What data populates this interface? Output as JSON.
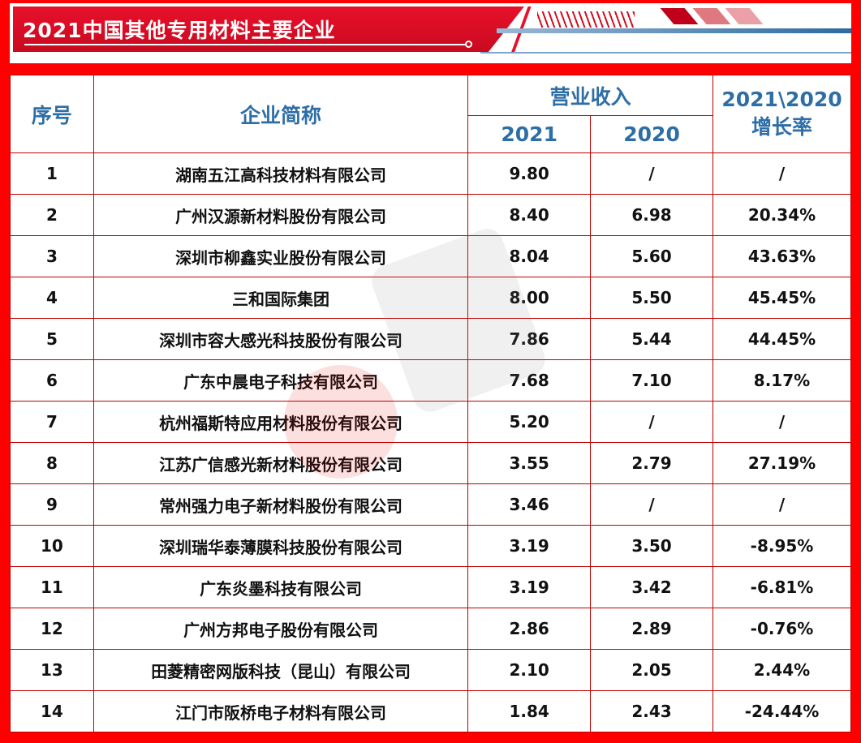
{
  "title": "2021中国其他专用材料主要企业",
  "headers": {
    "index": "序号",
    "name": "企业简称",
    "revenue": "营业收入",
    "y2021": "2021",
    "y2020": "2020",
    "growth_line1": "2021\\2020",
    "growth_line2": "增长率"
  },
  "rows": [
    [
      "1",
      "湖南五江高科技材料有限公司",
      "9.80",
      "/",
      "/"
    ],
    [
      "2",
      "广州汉源新材料股份有限公司",
      "8.40",
      "6.98",
      "20.34%"
    ],
    [
      "3",
      "深圳市柳鑫实业股份有限公司",
      "8.04",
      "5.60",
      "43.63%"
    ],
    [
      "4",
      "三和国际集团",
      "8.00",
      "5.50",
      "45.45%"
    ],
    [
      "5",
      "深圳市容大感光科技股份有限公司",
      "7.86",
      "5.44",
      "44.45%"
    ],
    [
      "6",
      "广东中晨电子科技有限公司",
      "7.68",
      "7.10",
      "8.17%"
    ],
    [
      "7",
      "杭州福斯特应用材料股份有限公司",
      "5.20",
      "/",
      "/"
    ],
    [
      "8",
      "江苏广信感光新材料股份有限公司",
      "3.55",
      "2.79",
      "27.19%"
    ],
    [
      "9",
      "常州强力电子新材料股份有限公司",
      "3.46",
      "/",
      "/"
    ],
    [
      "10",
      "深圳瑞华泰薄膜科技股份有限公司",
      "3.19",
      "3.50",
      "-8.95%"
    ],
    [
      "11",
      "广东炎墨科技有限公司",
      "3.19",
      "3.42",
      "-6.81%"
    ],
    [
      "12",
      "广州方邦电子股份有限公司",
      "2.86",
      "2.89",
      "-0.76%"
    ],
    [
      "13",
      "田菱精密网版科技（昆山）有限公司",
      "2.10",
      "2.05",
      "2.44%"
    ],
    [
      "14",
      "江门市阪桥电子材料有限公司",
      "1.84",
      "2.43",
      "-24.44%"
    ]
  ],
  "colors": {
    "border": "#fe0000",
    "header_text": "#2e6ea6",
    "banner": "#e8102a"
  }
}
